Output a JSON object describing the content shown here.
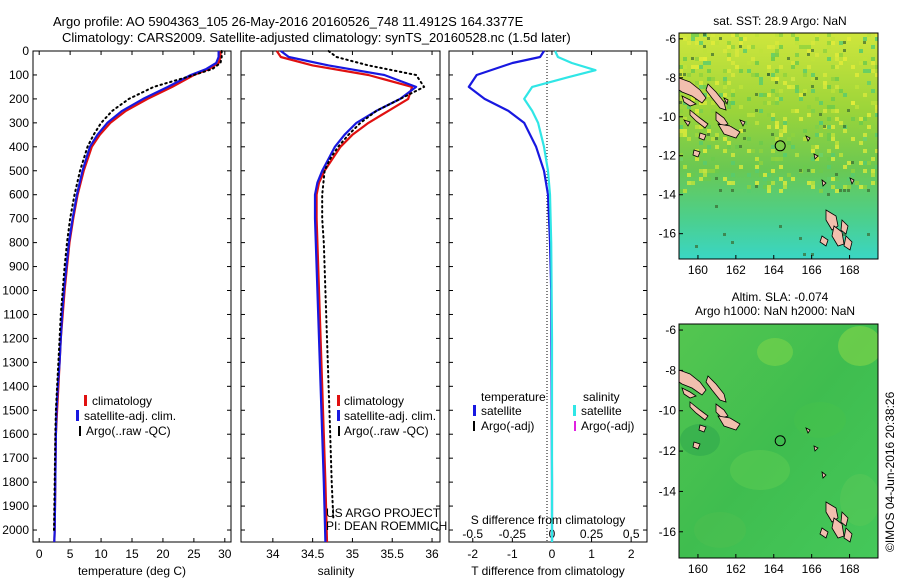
{
  "header": {
    "title_line1": "Argo profile: AO 5904363_105 26-May-2016 20160526_748 11.4912S 164.3377E",
    "title_line2": "Climatology: CARS2009. Satellite-adjusted climatology: synTS_20160528.nc (1.5d later)"
  },
  "colors": {
    "climatology": "#e01010",
    "satellite": "#1818e0",
    "argo": "#000000",
    "salinity_satellite": "#30e6e6",
    "salinity_argo": "#e020e0",
    "land": "#f2bfae"
  },
  "chart_data": [
    {
      "type": "line",
      "panel": "temperature",
      "xlabel": "temperature (deg C)",
      "ylabel": "",
      "xlim": [
        -1,
        31
      ],
      "ylim": [
        2050,
        0
      ],
      "xticks": [
        0,
        5,
        10,
        15,
        20,
        25,
        30
      ],
      "yticks": [
        0,
        100,
        200,
        300,
        400,
        500,
        600,
        700,
        800,
        900,
        1000,
        1100,
        1200,
        1300,
        1400,
        1500,
        1600,
        1700,
        1800,
        1900,
        2000
      ],
      "legend": [
        "climatology",
        "satellite-adj. clim.",
        "Argo(..raw -QC)"
      ],
      "series": [
        {
          "name": "climatology",
          "style": "solid",
          "color": "#e01010",
          "x": [
            29.3,
            29.3,
            29.0,
            27.5,
            25.0,
            21.5,
            17.5,
            14.0,
            11.5,
            9.8,
            8.5,
            7.2,
            6.2,
            5.5,
            4.9,
            4.5,
            4.1,
            3.8,
            3.5,
            3.3,
            3.1,
            2.9,
            2.7,
            2.6,
            2.5,
            2.45
          ],
          "y": [
            0,
            25,
            50,
            75,
            100,
            150,
            200,
            250,
            300,
            350,
            400,
            500,
            600,
            700,
            800,
            900,
            1000,
            1100,
            1200,
            1300,
            1400,
            1500,
            1600,
            1800,
            2000,
            2050
          ]
        },
        {
          "name": "satellite-adj. clim.",
          "style": "solid",
          "color": "#1818e0",
          "x": [
            29.0,
            29.0,
            28.6,
            27.0,
            24.5,
            20.8,
            16.8,
            13.4,
            11.0,
            9.4,
            8.2,
            7.0,
            6.1,
            5.4,
            4.8,
            4.4,
            4.0,
            3.7,
            3.5,
            3.3,
            3.0,
            2.8,
            2.7,
            2.6,
            2.5,
            2.45
          ],
          "y": [
            0,
            25,
            50,
            75,
            100,
            150,
            200,
            250,
            300,
            350,
            400,
            500,
            600,
            700,
            800,
            900,
            1000,
            1100,
            1200,
            1300,
            1400,
            1500,
            1600,
            1800,
            2000,
            2050
          ]
        },
        {
          "name": "Argo(..raw -QC)",
          "style": "dotted",
          "color": "#000000",
          "x": [
            29.5,
            29.5,
            29.3,
            28.0,
            25.0,
            18.5,
            14.5,
            11.8,
            10.0,
            8.8,
            7.8,
            6.6,
            5.7,
            5.0,
            4.5,
            4.1,
            3.8,
            3.5,
            3.3,
            3.1,
            2.9,
            2.7,
            2.6,
            2.5,
            2.4
          ],
          "y": [
            0,
            25,
            50,
            75,
            100,
            150,
            200,
            250,
            300,
            350,
            400,
            500,
            600,
            700,
            800,
            900,
            1000,
            1100,
            1200,
            1300,
            1400,
            1500,
            1600,
            1800,
            2000
          ]
        }
      ]
    },
    {
      "type": "line",
      "panel": "salinity",
      "xlabel": "salinity",
      "xlim": [
        33.6,
        36.1
      ],
      "ylim": [
        2050,
        0
      ],
      "xticks": [
        34,
        34.5,
        35,
        35.5,
        36
      ],
      "xtick_labels": [
        "34",
        "34.5",
        "35",
        "35.5",
        "36"
      ],
      "legend": [
        "climatology",
        "satellite-adj. clim.",
        "Argo(..raw -QC)"
      ],
      "annotations": [
        "US ARGO PROJECT",
        "PI: DEAN ROEMMICH"
      ],
      "series": [
        {
          "name": "climatology",
          "style": "solid",
          "color": "#e01010",
          "x": [
            34.05,
            34.1,
            34.5,
            35.2,
            35.75,
            35.7,
            35.45,
            35.2,
            35.0,
            34.85,
            34.75,
            34.65,
            34.58,
            34.55,
            34.55,
            34.56,
            34.58,
            34.6,
            34.62,
            34.64,
            34.66,
            34.68
          ],
          "y": [
            0,
            25,
            60,
            100,
            150,
            200,
            250,
            300,
            350,
            400,
            450,
            500,
            550,
            600,
            700,
            800,
            1000,
            1200,
            1400,
            1600,
            1800,
            2050
          ]
        },
        {
          "name": "satellite-adj. clim.",
          "style": "solid",
          "color": "#1818e0",
          "x": [
            34.1,
            34.2,
            34.7,
            35.4,
            35.8,
            35.6,
            35.3,
            35.05,
            34.9,
            34.78,
            34.7,
            34.62,
            34.56,
            34.53,
            34.53,
            34.54,
            34.56,
            34.58,
            34.6,
            34.62,
            34.64,
            34.66
          ],
          "y": [
            0,
            25,
            60,
            100,
            150,
            200,
            250,
            300,
            350,
            400,
            450,
            500,
            550,
            600,
            700,
            800,
            1000,
            1200,
            1400,
            1600,
            1800,
            2050
          ]
        },
        {
          "name": "Argo(..raw -QC)",
          "style": "dotted",
          "color": "#000000",
          "x": [
            34.7,
            34.8,
            35.2,
            35.8,
            35.9,
            35.6,
            35.3,
            35.1,
            34.95,
            34.82,
            34.72,
            34.65,
            34.62,
            34.62,
            34.64,
            34.66,
            34.68,
            34.7,
            34.72,
            34.74,
            34.76
          ],
          "y": [
            0,
            25,
            60,
            100,
            150,
            200,
            250,
            300,
            350,
            400,
            450,
            500,
            600,
            700,
            800,
            1000,
            1200,
            1400,
            1600,
            1800,
            1950
          ]
        }
      ]
    },
    {
      "type": "line",
      "panel": "difference",
      "xlabel": "T difference from climatology",
      "xlabel_top": "S difference from climatology",
      "xlim": [
        -2.6,
        2.4
      ],
      "ylim": [
        2050,
        0
      ],
      "xticks_bottom": [
        -2,
        -1,
        0,
        1,
        2
      ],
      "xticks_top": [
        -0.5,
        -0.25,
        0,
        0.25,
        0.5
      ],
      "xtick_labels_top": [
        "-0.5",
        "-0.25",
        "0",
        "0.25",
        "0.5"
      ],
      "legend_temperature": [
        "temperature",
        "satellite",
        "Argo(-adj)"
      ],
      "legend_salinity": [
        "salinity",
        "satellite",
        "Argo(-adj)"
      ],
      "series": [
        {
          "name": "satellite",
          "group": "temperature",
          "color": "#1818e0",
          "x": [
            -0.2,
            -0.3,
            -1.0,
            -1.9,
            -2.1,
            -1.7,
            -1.1,
            -0.7,
            -0.4,
            -0.2,
            -0.1,
            -0.05,
            -0.02,
            -0.01,
            0,
            0
          ],
          "y": [
            0,
            25,
            50,
            100,
            150,
            200,
            250,
            300,
            400,
            500,
            600,
            800,
            1000,
            1400,
            1800,
            2050
          ]
        },
        {
          "name": "satellite",
          "group": "salinity",
          "color": "#30e6e6",
          "x": [
            0.08,
            0.15,
            0.5,
            1.1,
            0.4,
            -0.5,
            -0.7,
            -0.5,
            -0.35,
            -0.2,
            -0.1,
            -0.05,
            -0.02,
            0,
            0
          ],
          "y": [
            0,
            25,
            50,
            80,
            110,
            150,
            200,
            250,
            300,
            400,
            500,
            600,
            800,
            1200,
            2050
          ]
        }
      ]
    }
  ],
  "maps": [
    {
      "panel": "sst-map",
      "title": "sat. SST: 28.9 Argo: NaN",
      "title_line2": "",
      "xticks": [
        160,
        162,
        164,
        166,
        168
      ],
      "yticks": [
        -6,
        -8,
        -10,
        -12,
        -14,
        -16
      ],
      "lon_range": [
        159.0,
        169.5
      ],
      "lat_range": [
        -17.3,
        -5.7
      ],
      "float_lon": 164.34,
      "float_lat": -11.49
    },
    {
      "panel": "sla-map",
      "title": "Altim. SLA: -0.074",
      "title_line2": "Argo h1000: NaN h2000: NaN",
      "xticks": [
        160,
        162,
        164,
        166,
        168
      ],
      "yticks": [
        -6,
        -8,
        -10,
        -12,
        -14,
        -16
      ],
      "lon_range": [
        159.0,
        169.5
      ],
      "lat_range": [
        -17.3,
        -5.7
      ],
      "float_lon": 164.34,
      "float_lat": -11.49
    }
  ],
  "credit": "©IMOS 04-Jun-2016 20:38:26"
}
